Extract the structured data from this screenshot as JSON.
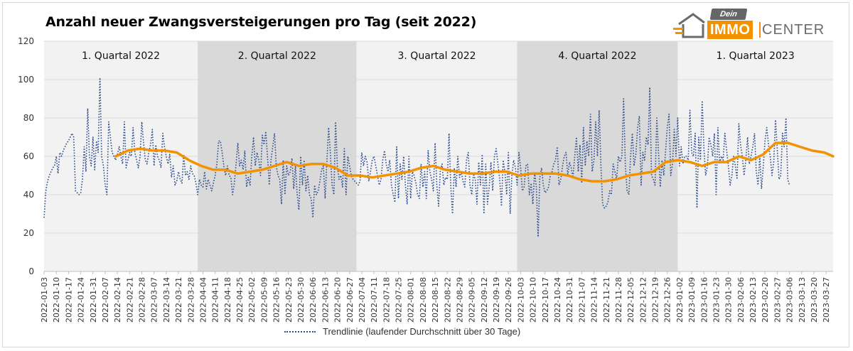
{
  "title": "Anzahl neuer Zwangsversteigerungen pro Tag (seit 2022)",
  "logo": {
    "dein": "Dein",
    "immo": "IMMO",
    "center": "CENTER"
  },
  "colors": {
    "raw_series": "#2f4f8f",
    "trend_series": "#f39200",
    "band_light": "#f2f2f2",
    "band_dark": "#d9d9d9",
    "grid": "#d9d9d9"
  },
  "chart_data": {
    "type": "line",
    "title": "Anzahl neuer Zwangsversteigerungen pro Tag (seit 2022)",
    "ylim": [
      0,
      120
    ],
    "yticks": [
      0,
      20,
      40,
      60,
      80,
      100,
      120
    ],
    "xlim": [
      "2022-01-03",
      "2023-03-31"
    ],
    "xticks": [
      "2022-01-03",
      "2022-01-10",
      "2022-01-17",
      "2022-01-24",
      "2022-01-31",
      "2022-02-07",
      "2022-02-14",
      "2022-02-21",
      "2022-02-28",
      "2022-03-07",
      "2022-03-14",
      "2022-03-21",
      "2022-03-28",
      "2022-04-04",
      "2022-04-11",
      "2022-04-18",
      "2022-04-25",
      "2022-05-02",
      "2022-05-09",
      "2022-05-16",
      "2022-05-23",
      "2022-05-30",
      "2022-06-06",
      "2022-06-13",
      "2022-06-20",
      "2022-06-27",
      "2022-07-04",
      "2022-07-11",
      "2022-07-18",
      "2022-07-25",
      "2022-08-01",
      "2022-08-08",
      "2022-08-15",
      "2022-08-22",
      "2022-08-29",
      "2022-09-05",
      "2022-09-12",
      "2022-09-19",
      "2022-09-26",
      "2022-10-03",
      "2022-10-10",
      "2022-10-17",
      "2022-10-24",
      "2022-10-31",
      "2022-11-07",
      "2022-11-14",
      "2022-11-21",
      "2022-11-28",
      "2022-12-05",
      "2022-12-12",
      "2022-12-19",
      "2022-12-26",
      "2023-01-02",
      "2023-01-09",
      "2023-01-16",
      "2023-01-23",
      "2023-01-30",
      "2023-02-06",
      "2023-02-13",
      "2023-02-20",
      "2023-02-27",
      "2023-03-06",
      "2023-03-13",
      "2023-03-20",
      "2023-03-27"
    ],
    "grid": true,
    "legend_position": "bottom",
    "bands": [
      {
        "label": "1. Quartal 2022",
        "start": "2022-01-03",
        "end": "2022-04-01",
        "shade": "light"
      },
      {
        "label": "2. Quartal 2022",
        "start": "2022-04-01",
        "end": "2022-07-01",
        "shade": "dark"
      },
      {
        "label": "3. Quartal 2022",
        "start": "2022-07-01",
        "end": "2022-10-01",
        "shade": "light"
      },
      {
        "label": "4. Quartal 2022",
        "start": "2022-10-01",
        "end": "2023-01-01",
        "shade": "dark"
      },
      {
        "label": "1. Quartal 2023",
        "start": "2023-01-01",
        "end": "2023-03-31",
        "shade": "light"
      }
    ],
    "series": [
      {
        "name": "Trendlinie (laufender Durchschnitt über 30 Tage)",
        "style": "dotted",
        "step_days": 1,
        "start": "2022-01-03",
        "values": [
          28,
          42,
          47,
          50,
          52,
          54,
          55,
          60,
          51,
          62,
          60,
          63,
          65,
          67,
          68,
          70,
          72,
          70,
          42,
          41,
          40,
          41,
          48,
          65,
          52,
          85,
          60,
          55,
          70,
          53,
          68,
          62,
          101,
          60,
          55,
          45,
          40,
          78,
          70,
          62,
          60,
          58,
          61,
          65,
          60,
          56,
          78,
          54,
          58,
          62,
          60,
          75,
          62,
          58,
          54,
          60,
          78,
          67,
          58,
          56,
          62,
          66,
          74,
          55,
          66,
          60,
          58,
          54,
          72,
          65,
          60,
          56,
          61,
          49,
          55,
          45,
          47,
          52,
          48,
          46,
          61,
          50,
          52,
          48,
          55,
          51,
          50,
          46,
          40,
          48,
          45,
          44,
          52,
          43,
          48,
          45,
          42,
          46,
          50,
          56,
          68,
          68,
          62,
          55,
          50,
          55,
          50,
          49,
          40,
          46,
          56,
          67,
          55,
          58,
          53,
          63,
          44,
          49,
          45,
          60,
          70,
          55,
          62,
          58,
          50,
          71,
          66,
          73,
          60,
          45,
          58,
          65,
          72,
          55,
          50,
          48,
          35,
          58,
          40,
          55,
          50,
          52,
          59,
          43,
          55,
          40,
          32,
          60,
          45,
          58,
          42,
          50,
          40,
          38,
          28,
          45,
          40,
          42,
          47,
          53,
          55,
          38,
          57,
          75,
          62,
          45,
          40,
          78,
          55,
          48,
          50,
          44,
          64,
          40,
          60,
          55,
          50,
          48,
          47,
          46,
          45,
          47,
          62,
          55,
          60,
          57,
          47,
          52,
          58,
          60,
          55,
          50,
          45,
          48,
          58,
          63,
          56,
          52,
          58,
          45,
          40,
          36,
          65,
          38,
          56,
          48,
          60,
          45,
          35,
          60,
          38,
          52,
          50,
          46,
          40,
          38,
          56,
          44,
          52,
          38,
          63,
          52,
          48,
          42,
          67,
          45,
          34,
          53,
          56,
          45,
          49,
          48,
          72,
          44,
          30,
          54,
          44,
          60,
          49,
          52,
          47,
          44,
          58,
          62,
          45,
          40,
          51,
          48,
          35,
          57,
          45,
          61,
          30,
          56,
          35,
          44,
          57,
          42,
          60,
          64,
          56,
          48,
          34,
          58,
          52,
          40,
          62,
          30,
          50,
          58,
          54,
          45,
          62,
          54,
          42,
          44,
          55,
          56,
          40,
          46,
          35,
          52,
          44,
          18,
          49,
          54,
          45,
          41,
          42,
          44,
          50,
          52,
          56,
          58,
          65,
          45,
          48,
          55,
          60,
          62,
          50,
          57,
          54,
          49,
          60,
          70,
          52,
          66,
          46,
          75,
          55,
          68,
          60,
          82,
          52,
          58,
          78,
          60,
          84,
          55,
          35,
          33,
          34,
          36,
          42,
          40,
          56,
          52,
          48,
          60,
          57,
          60,
          90,
          55,
          42,
          40,
          60,
          72,
          55,
          61,
          75,
          81,
          45,
          62,
          58,
          70,
          66,
          96,
          50,
          48,
          45,
          80,
          62,
          44,
          58,
          50,
          62,
          75,
          82,
          50,
          56,
          74,
          60,
          80,
          55,
          65,
          56,
          60,
          60,
          58,
          84,
          62,
          60,
          72,
          33,
          70,
          58,
          89,
          64,
          50,
          55,
          70,
          66,
          60,
          72,
          40,
          75,
          56,
          60,
          58,
          72,
          63,
          55,
          45,
          50,
          60,
          55,
          48,
          77,
          66,
          60,
          50,
          58,
          70,
          56,
          60,
          65,
          72,
          52,
          45,
          60,
          43,
          55,
          68,
          75,
          66,
          60,
          50,
          57,
          79,
          64,
          48,
          50,
          72,
          65,
          80,
          48,
          45
        ]
      },
      {
        "name": "",
        "style": "solid",
        "x": [
          "2022-02-13",
          "2022-02-20",
          "2022-02-27",
          "2022-03-06",
          "2022-03-13",
          "2022-03-20",
          "2022-03-27",
          "2022-04-03",
          "2022-04-10",
          "2022-04-17",
          "2022-04-24",
          "2022-05-01",
          "2022-05-08",
          "2022-05-15",
          "2022-05-22",
          "2022-05-29",
          "2022-06-05",
          "2022-06-12",
          "2022-06-19",
          "2022-06-26",
          "2022-07-03",
          "2022-07-10",
          "2022-07-17",
          "2022-07-24",
          "2022-07-31",
          "2022-08-07",
          "2022-08-14",
          "2022-08-21",
          "2022-08-28",
          "2022-09-04",
          "2022-09-11",
          "2022-09-18",
          "2022-09-25",
          "2022-10-02",
          "2022-10-09",
          "2022-10-16",
          "2022-10-23",
          "2022-10-30",
          "2022-11-06",
          "2022-11-13",
          "2022-11-20",
          "2022-11-27",
          "2022-12-04",
          "2022-12-11",
          "2022-12-18",
          "2022-12-25",
          "2023-01-01",
          "2023-01-08",
          "2023-01-15",
          "2023-01-22",
          "2023-01-29",
          "2023-02-05",
          "2023-02-12",
          "2023-02-19",
          "2023-02-26",
          "2023-03-05",
          "2023-03-12",
          "2023-03-19",
          "2023-03-26",
          "2023-03-31"
        ],
        "values": [
          60,
          63,
          64,
          63,
          63,
          62,
          58,
          55,
          53,
          53,
          51,
          52,
          53,
          55,
          57,
          55,
          56,
          56,
          54,
          50,
          50,
          49,
          50,
          51,
          52,
          54,
          55,
          53,
          52,
          51,
          51,
          52,
          52,
          50,
          51,
          51,
          51,
          50,
          48,
          47,
          47,
          48,
          50,
          51,
          52,
          57,
          58,
          57,
          55,
          57,
          57,
          60,
          58,
          61,
          67,
          67,
          65,
          63,
          62,
          60
        ]
      }
    ]
  }
}
